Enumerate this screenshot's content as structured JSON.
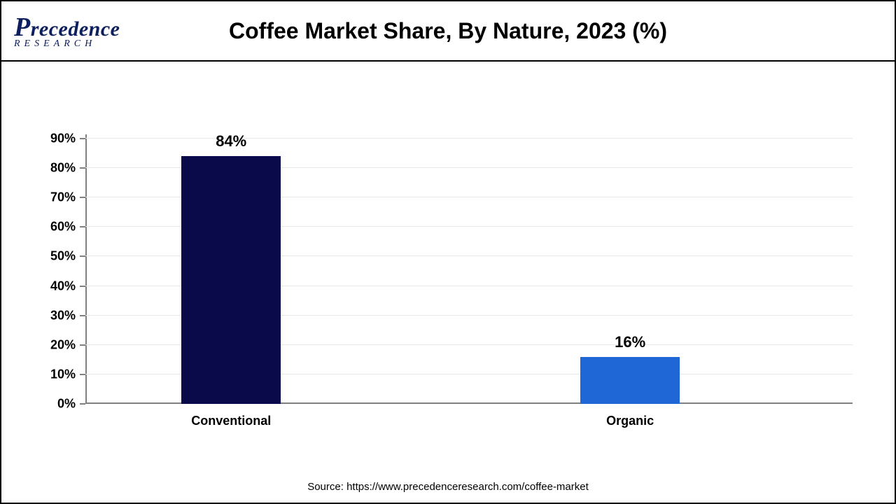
{
  "header": {
    "logo_brand_pre": "P",
    "logo_brand_rest": "recedence",
    "logo_sub": "RESEARCH",
    "title": "Coffee Market Share, By Nature, 2023 (%)"
  },
  "chart": {
    "type": "bar",
    "categories": [
      "Conventional",
      "Organic"
    ],
    "values": [
      84,
      16
    ],
    "value_labels": [
      "84%",
      "16%"
    ],
    "bar_colors": [
      "#0a0a4a",
      "#1f66d6"
    ],
    "ylim": [
      0,
      90
    ],
    "ytick_step": 10,
    "ytick_labels": [
      "0%",
      "10%",
      "20%",
      "30%",
      "40%",
      "50%",
      "60%",
      "70%",
      "80%",
      "90%"
    ],
    "grid_color": "#e8e8e8",
    "axis_color": "#808080",
    "background_color": "#ffffff",
    "bar_width_pct": 13,
    "bar_positions_pct": [
      19,
      71
    ],
    "title_fontsize": 32,
    "label_fontsize": 18,
    "value_label_fontsize": 22
  },
  "footer": {
    "source": "Source: https://www.precedenceresearch.com/coffee-market"
  }
}
